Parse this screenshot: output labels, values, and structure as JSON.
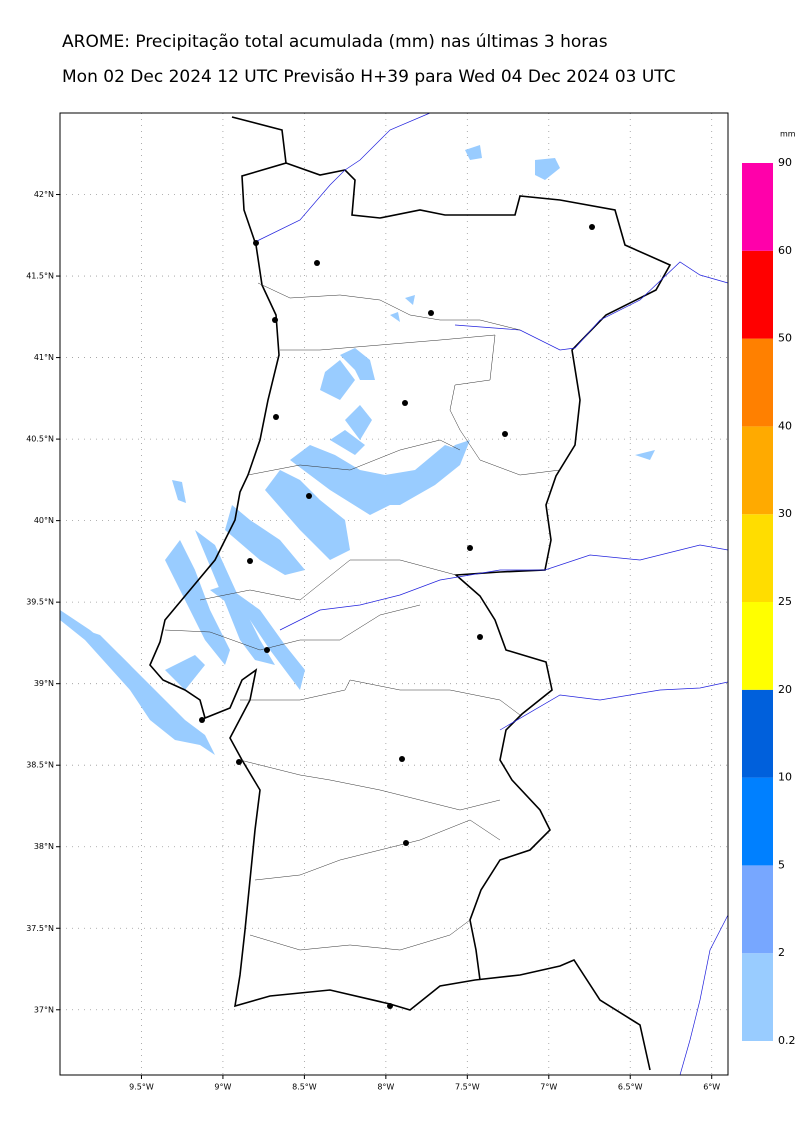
{
  "map": {
    "title": "AROME: Precipitação total acumulada (mm) nas últimas 3 horas",
    "subtitle": "Mon 02 Dec 2024 12 UTC Previsão H+39 para Wed 04 Dec 2024 03 UTC",
    "xlim": [
      -10.0,
      -5.9
    ],
    "ylim": [
      36.6,
      42.5
    ],
    "xticks": [
      {
        "value": -9.5,
        "label": "9.5°W"
      },
      {
        "value": -9,
        "label": "9°W"
      },
      {
        "value": -8.5,
        "label": "8.5°W"
      },
      {
        "value": -8,
        "label": "8°W"
      },
      {
        "value": -7.5,
        "label": "7.5°W"
      },
      {
        "value": -7,
        "label": "7°W"
      },
      {
        "value": -6.5,
        "label": "6.5°W"
      },
      {
        "value": -6,
        "label": "6°W"
      }
    ],
    "yticks": [
      {
        "value": 42,
        "label": "42°N"
      },
      {
        "value": 41.5,
        "label": "41.5°N"
      },
      {
        "value": 41,
        "label": "41°N"
      },
      {
        "value": 40.5,
        "label": "40.5°N"
      },
      {
        "value": 40,
        "label": "40°N"
      },
      {
        "value": 39.5,
        "label": "39.5°N"
      },
      {
        "value": 39,
        "label": "39°N"
      },
      {
        "value": 38.5,
        "label": "38.5°N"
      },
      {
        "value": 38,
        "label": "38°N"
      },
      {
        "value": 37.5,
        "label": "37.5°N"
      },
      {
        "value": 37,
        "label": "37°N"
      }
    ],
    "grid": true,
    "colorbar": {
      "unit": "mm",
      "levels": [
        0.2,
        2,
        5,
        10,
        20,
        25,
        30,
        40,
        50,
        60,
        90
      ],
      "colors": [
        "#99ccff",
        "#77a7ff",
        "#0080ff",
        "#0060dc",
        "#ffff00",
        "#ffdd00",
        "#ffaa00",
        "#ff8000",
        "#ff0000",
        "#ff00aa"
      ]
    }
  }
}
